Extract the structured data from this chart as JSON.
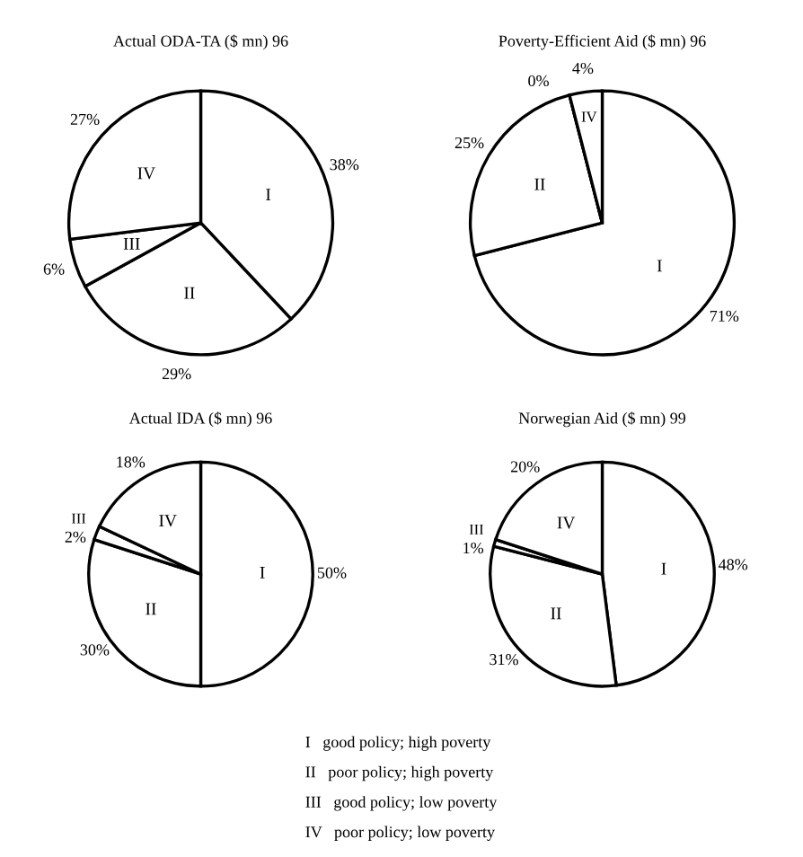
{
  "chart_data": [
    {
      "type": "pie",
      "title": "Actual ODA-TA ($ mn) 96",
      "categories": [
        "I",
        "II",
        "III",
        "IV"
      ],
      "values": [
        38,
        29,
        6,
        27
      ],
      "value_labels": [
        "38%",
        "29%",
        "6%",
        "27%"
      ],
      "colors": [
        "#ffffff",
        "#ffffff",
        "#ffffff",
        "#ffffff"
      ]
    },
    {
      "type": "pie",
      "title": "Poverty-Efficient Aid ($ mn) 96",
      "categories": [
        "I",
        "II",
        null,
        "IV"
      ],
      "values": [
        71,
        25,
        0,
        4
      ],
      "value_labels": [
        "71%",
        "25%",
        "0%",
        "4%"
      ],
      "colors": [
        "#ffffff",
        "#ffffff",
        "#ffffff",
        "#ffffff"
      ]
    },
    {
      "type": "pie",
      "title": "Actual IDA ($ mn) 96",
      "categories": [
        "I",
        "II",
        "III",
        "IV"
      ],
      "values": [
        50,
        30,
        2,
        18
      ],
      "value_labels": [
        "50%",
        "30%",
        "2%",
        "18%"
      ],
      "colors": [
        "#ffffff",
        "#ffffff",
        "#ffffff",
        "#ffffff"
      ]
    },
    {
      "type": "pie",
      "title": "Norwegian Aid ($ mn) 99",
      "categories": [
        "I",
        "II",
        "III",
        "IV"
      ],
      "values": [
        48,
        31,
        1,
        20
      ],
      "value_labels": [
        "48%",
        "31%",
        "1%",
        "20%"
      ],
      "colors": [
        "#ffffff",
        "#ffffff",
        "#ffffff",
        "#ffffff"
      ]
    },
    {
      "type": "other",
      "annotations": [
        "I   good policy; high poverty",
        "II   poor policy; high poverty",
        "III   good policy; low poverty",
        "IV   poor policy; low poverty"
      ]
    }
  ]
}
